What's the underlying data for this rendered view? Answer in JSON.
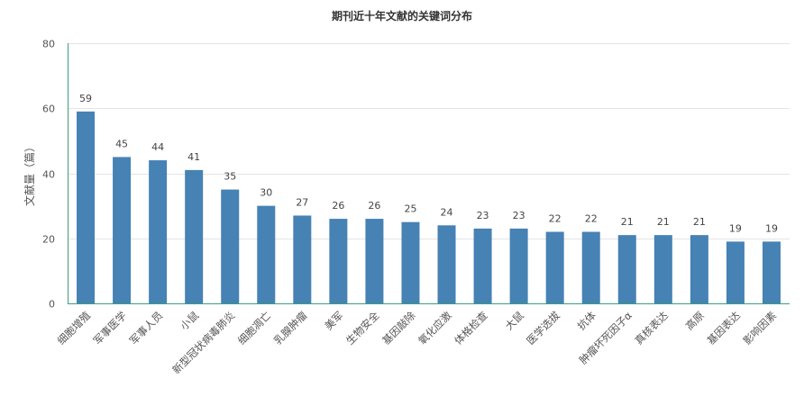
{
  "chart_data": {
    "type": "bar",
    "title": "期刊近十年文献的关键词分布",
    "xlabel": "",
    "ylabel": "文献量（篇）",
    "ylim": [
      0,
      80
    ],
    "yticks": [
      0,
      20,
      40,
      60,
      80
    ],
    "grid": true,
    "color": "#4682b4",
    "axis_color": "#3aa07a",
    "categories": [
      "细胞增殖",
      "军事医学",
      "军事人员",
      "小鼠",
      "新型冠状病毒肺炎",
      "细胞凋亡",
      "乳腺肿瘤",
      "美军",
      "生物安全",
      "基因敲除",
      "氧化应激",
      "体格检查",
      "大鼠",
      "医学选拔",
      "抗体",
      "肿瘤坏死因子α",
      "真核表达",
      "高原",
      "基因表达",
      "影响因素"
    ],
    "values": [
      59,
      45,
      44,
      41,
      35,
      30,
      27,
      26,
      26,
      25,
      24,
      23,
      23,
      22,
      22,
      21,
      21,
      21,
      19,
      19
    ]
  }
}
